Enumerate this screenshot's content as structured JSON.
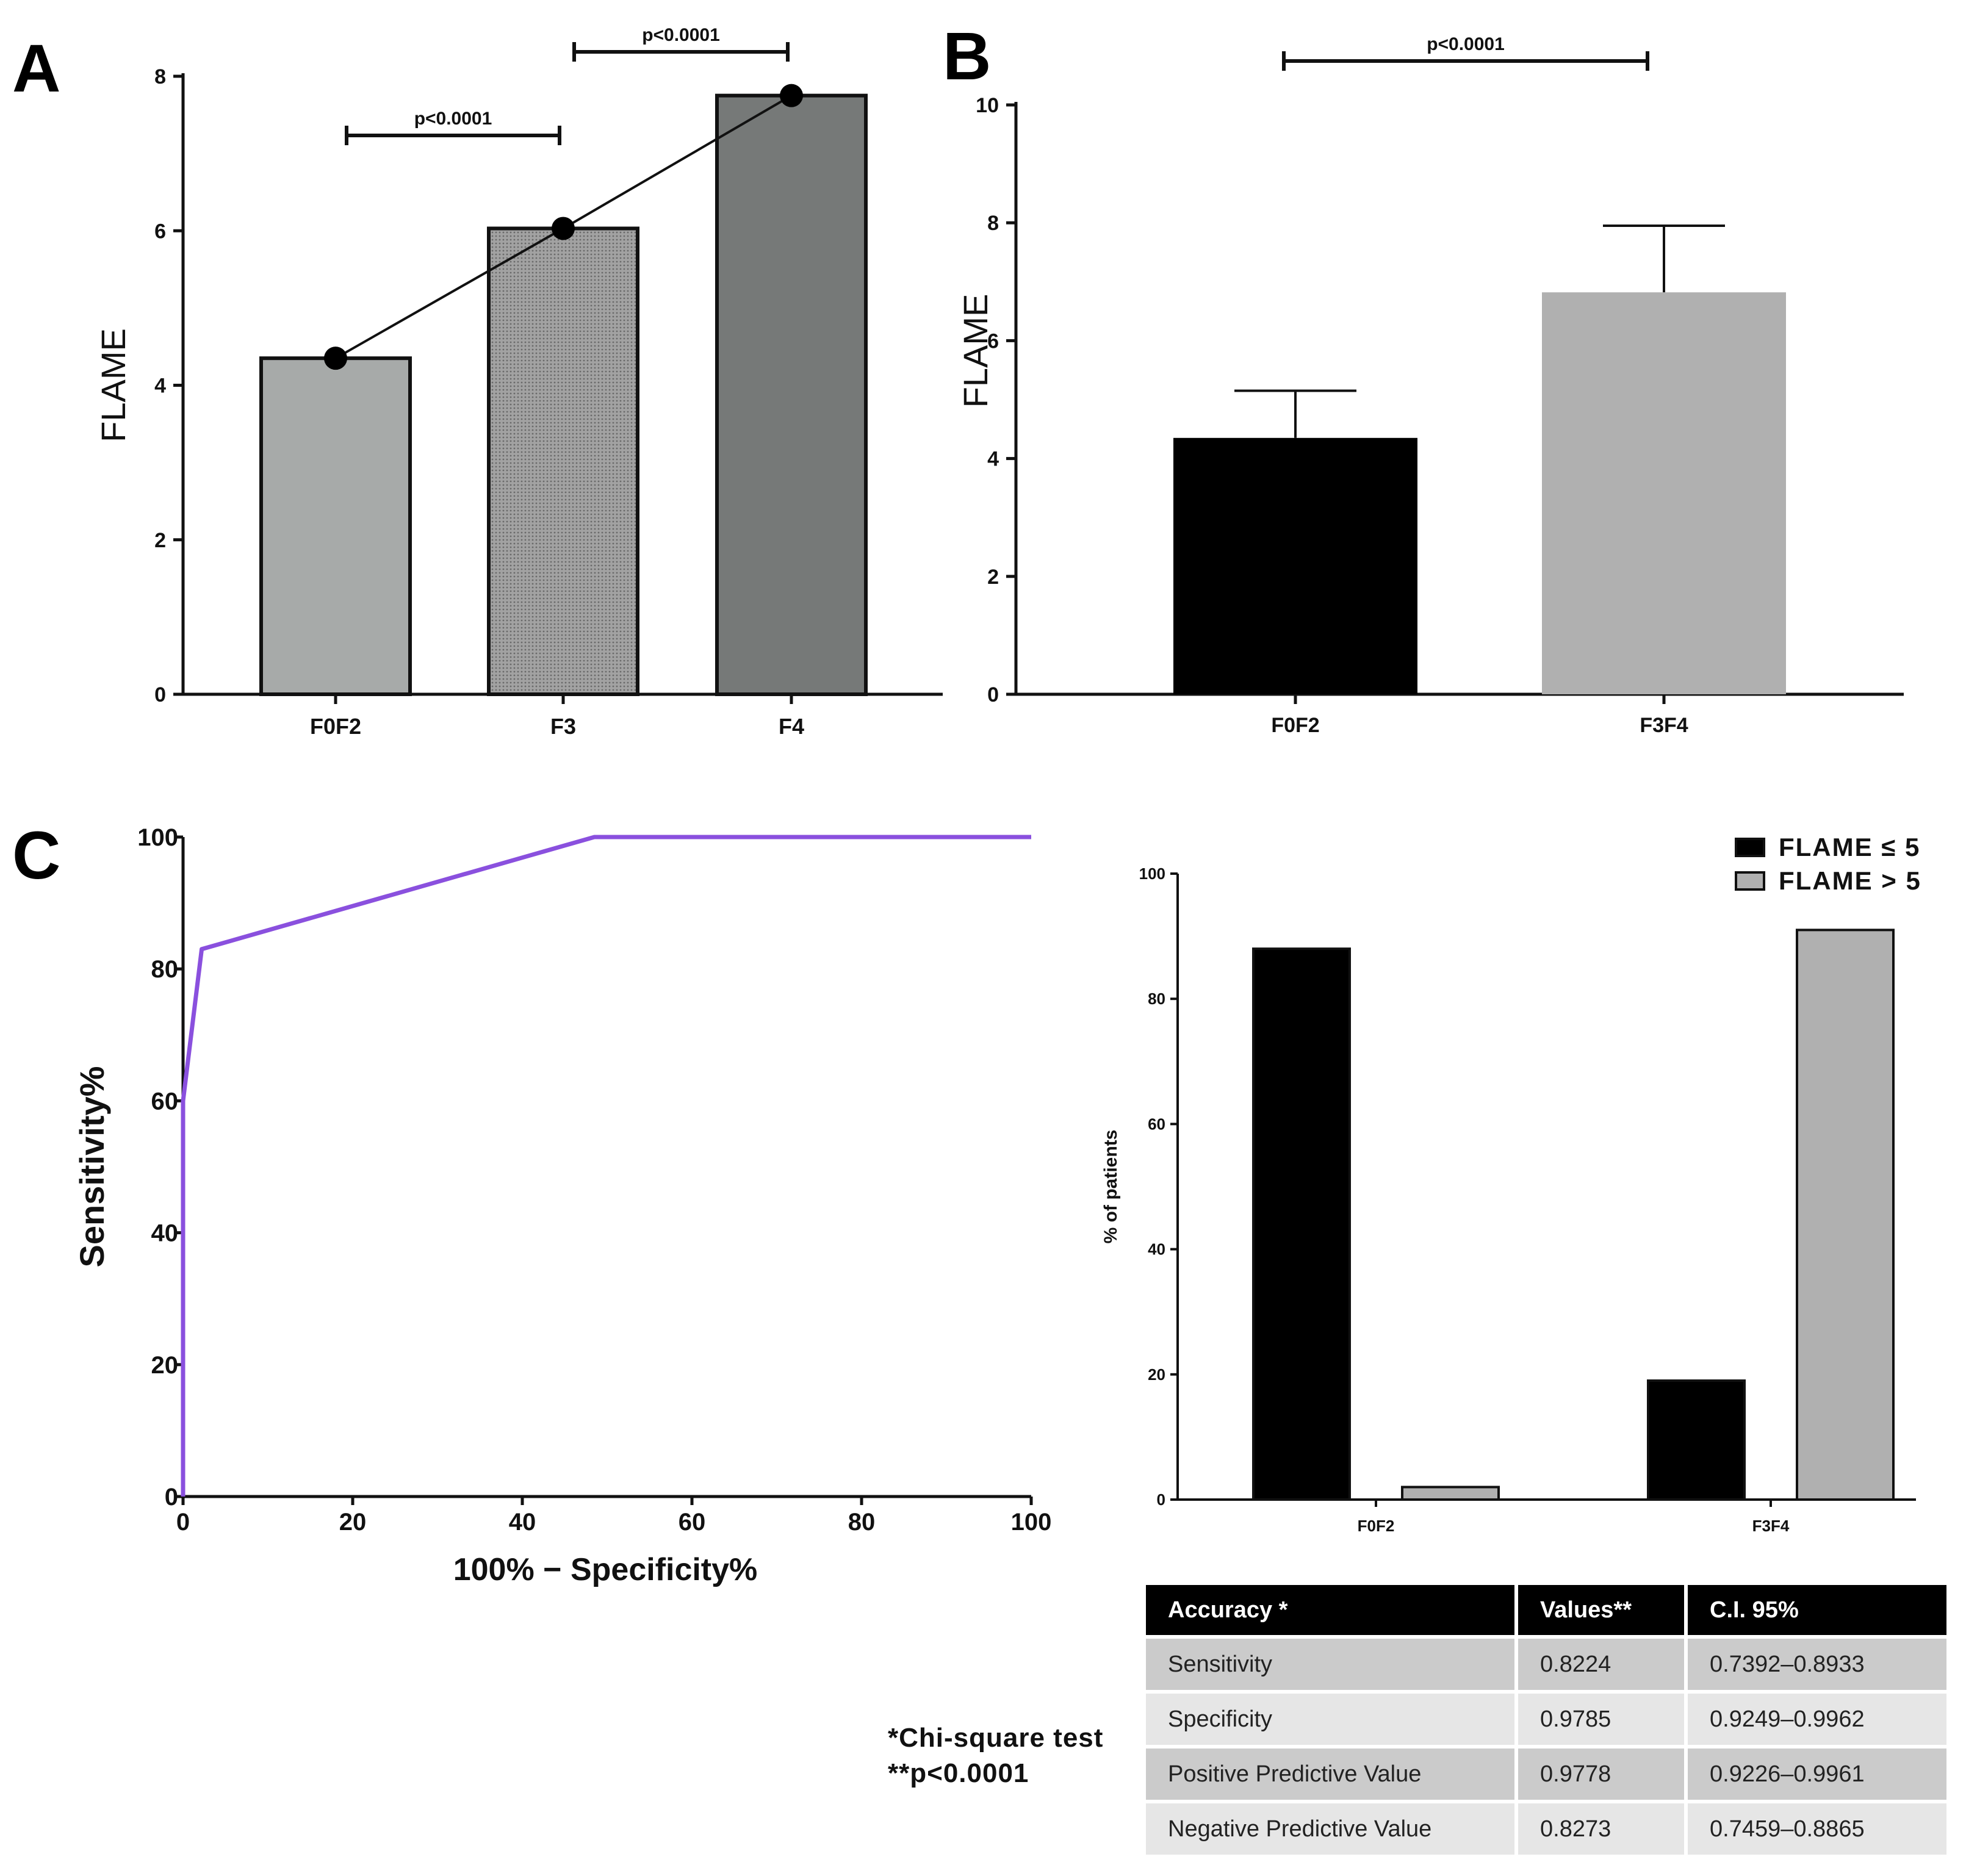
{
  "panels": {
    "a": {
      "letter": "A"
    },
    "b": {
      "letter": "B"
    },
    "c": {
      "letter": "C"
    }
  },
  "chart_data": [
    {
      "id": "A",
      "type": "bar",
      "categories": [
        "F0F2",
        "F3",
        "F4"
      ],
      "values": [
        4.35,
        6.03,
        7.75
      ],
      "line_overlay": [
        4.35,
        6.03,
        7.75
      ],
      "ylabel": "FLAME",
      "xlabel": "",
      "ylim": [
        0,
        8
      ],
      "yticks": [
        0,
        2,
        4,
        6,
        8
      ],
      "bar_colors": [
        "#a7aaa9",
        "#979797",
        "#767978"
      ],
      "significance": [
        {
          "from": "F0F2",
          "to": "F3",
          "label": "p<0.0001"
        },
        {
          "from": "F3",
          "to": "F4",
          "label": "p<0.0001"
        }
      ]
    },
    {
      "id": "B",
      "type": "bar",
      "categories": [
        "F0F2",
        "F3F4"
      ],
      "values": [
        4.35,
        6.82
      ],
      "error_upper": [
        5.15,
        7.95
      ],
      "ylabel": "FLAME",
      "xlabel": "",
      "ylim": [
        0,
        10
      ],
      "yticks": [
        0,
        2,
        4,
        6,
        8,
        10
      ],
      "bar_colors": [
        "#000000",
        "#b0b0b0"
      ],
      "significance": [
        {
          "from": "F0F2",
          "to": "F3F4",
          "label": "p<0.0001"
        }
      ]
    },
    {
      "id": "C-roc",
      "type": "line",
      "x": [
        0,
        0,
        2.2,
        48.5,
        100
      ],
      "y": [
        0,
        60,
        83,
        100,
        100
      ],
      "xlabel": "100% − Specificity%",
      "ylabel": "Sensitivity%",
      "xlim": [
        0,
        100
      ],
      "ylim": [
        0,
        100
      ],
      "xticks": [
        0,
        20,
        40,
        60,
        80,
        100
      ],
      "yticks": [
        0,
        20,
        40,
        60,
        80,
        100
      ],
      "line_color": "#8a50de"
    },
    {
      "id": "C-bars",
      "type": "bar",
      "categories": [
        "F0F2",
        "F3F4"
      ],
      "series": [
        {
          "name": "FLAME ≤ 5",
          "values": [
            88,
            19
          ],
          "color": "#000000"
        },
        {
          "name": "FLAME > 5",
          "values": [
            2,
            91
          ],
          "color": "#b0b0b0"
        }
      ],
      "ylabel": "% of patients",
      "xlabel": "",
      "ylim": [
        0,
        100
      ],
      "yticks": [
        0,
        20,
        40,
        60,
        80,
        100
      ],
      "legend": "top-right"
    }
  ],
  "notes": {
    "line1": "*Chi-square test",
    "line2": "**p<0.0001"
  },
  "table": {
    "headers": [
      "Accuracy *",
      "Values**",
      "C.I. 95%"
    ],
    "rows": [
      [
        "Sensitivity",
        "0.8224",
        "0.7392–0.8933"
      ],
      [
        "Specificity",
        "0.9785",
        "0.9249–0.9962"
      ],
      [
        "Positive Predictive Value",
        "0.9778",
        "0.9226–0.9961"
      ],
      [
        "Negative Predictive Value",
        "0.8273",
        "0.7459–0.8865"
      ]
    ]
  }
}
